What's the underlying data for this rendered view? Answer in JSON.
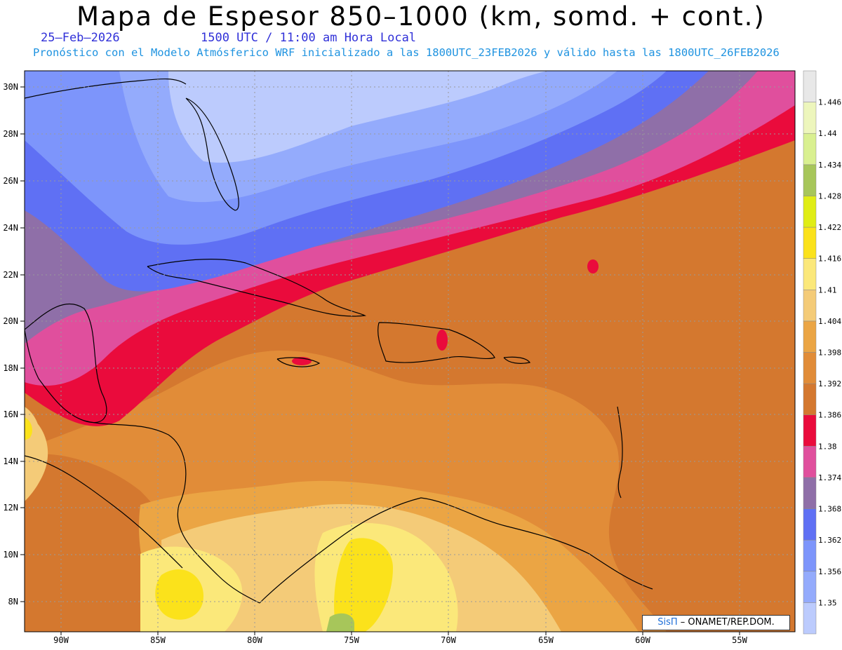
{
  "header": {
    "title": "Mapa de Espesor 850–1000 (km, somd. + cont.)",
    "date": "25–Feb–2026",
    "time": "1500 UTC / 11:00 am Hora Local",
    "forecast": "Pronóstico con el Modelo Atmósferico WRF inicializado a las 1800UTC_23FEB2026 y válido hasta las  1800UTC_26FEB2026"
  },
  "map": {
    "lat_labels": [
      "30N",
      "28N",
      "26N",
      "24N",
      "22N",
      "20N",
      "18N",
      "16N",
      "14N",
      "12N",
      "10N",
      "8N"
    ],
    "lon_labels": [
      "90W",
      "85W",
      "80W",
      "75W",
      "70W",
      "65W",
      "60W",
      "55W"
    ]
  },
  "colorbar": {
    "levels": [
      "1.35",
      "1.356",
      "1.362",
      "1.368",
      "1.374",
      "1.38",
      "1.386",
      "1.392",
      "1.398",
      "1.404",
      "1.41",
      "1.416",
      "1.422",
      "1.428",
      "1.434",
      "1.44",
      "1.446"
    ],
    "colors": [
      "#bccbfd",
      "#94abfc",
      "#7d95fb",
      "#5f70f4",
      "#8f6fa8",
      "#e04f9d",
      "#ea0b3c",
      "#d4782f",
      "#e18c38",
      "#eba544",
      "#f4cb78",
      "#fbe87a",
      "#fbe21b",
      "#e0ed15",
      "#a7c65a",
      "#d9f090",
      "#edf6bc",
      "#e8e8e8"
    ]
  },
  "credit": {
    "brand": "SisΠ",
    "text": " – ONAMET/REP.DOM."
  }
}
